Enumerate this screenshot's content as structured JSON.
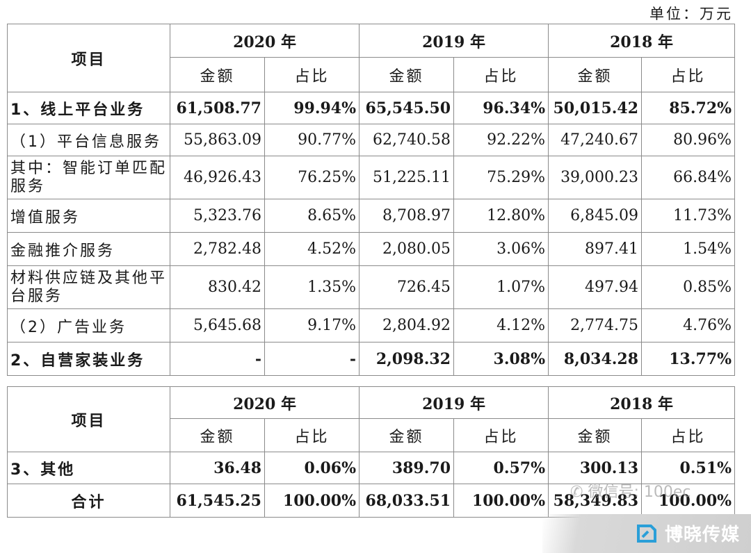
{
  "unit_label": "单位：万元",
  "header": {
    "item": "项目",
    "years": [
      "2020 年",
      "2019 年",
      "2018 年"
    ],
    "amount": "金额",
    "ratio": "占比"
  },
  "rows": [
    {
      "label": "1、线上平台业务",
      "bold": true,
      "values": [
        "61,508.77",
        "99.94%",
        "65,545.50",
        "96.34%",
        "50,015.42",
        "85.72%"
      ]
    },
    {
      "label": "（1）平台信息服务",
      "bold": false,
      "values": [
        "55,863.09",
        "90.77%",
        "62,740.58",
        "92.22%",
        "47,240.67",
        "80.96%"
      ]
    },
    {
      "label": "其中：智能订单匹配服务",
      "bold": false,
      "values": [
        "46,926.43",
        "76.25%",
        "51,225.11",
        "75.29%",
        "39,000.23",
        "66.84%"
      ]
    },
    {
      "label": "增值服务",
      "bold": false,
      "values": [
        "5,323.76",
        "8.65%",
        "8,708.97",
        "12.80%",
        "6,845.09",
        "11.73%"
      ]
    },
    {
      "label": "金融推介服务",
      "bold": false,
      "values": [
        "2,782.48",
        "4.52%",
        "2,080.05",
        "3.06%",
        "897.41",
        "1.54%"
      ]
    },
    {
      "label": "材料供应链及其他平台服务",
      "bold": false,
      "values": [
        "830.42",
        "1.35%",
        "726.45",
        "1.07%",
        "497.94",
        "0.85%"
      ]
    },
    {
      "label": "（2）广告业务",
      "bold": false,
      "values": [
        "5,645.68",
        "9.17%",
        "2,804.92",
        "4.12%",
        "2,774.75",
        "4.76%"
      ]
    },
    {
      "label": "2、自营家装业务",
      "bold": true,
      "values": [
        "-",
        "-",
        "2,098.32",
        "3.08%",
        "8,034.28",
        "13.77%"
      ]
    }
  ],
  "rows2": [
    {
      "label": "3、其他",
      "bold": true,
      "values": [
        "36.48",
        "0.06%",
        "389.70",
        "0.57%",
        "300.13",
        "0.51%"
      ]
    },
    {
      "label": "合计",
      "bold": true,
      "values": [
        "61,545.25",
        "100.00%",
        "68,033.51",
        "100.00%",
        "58,349.83",
        "100.00%"
      ]
    }
  ],
  "watermark_wechat": "微信号: 100ec",
  "watermark_brand": "博晓传媒"
}
